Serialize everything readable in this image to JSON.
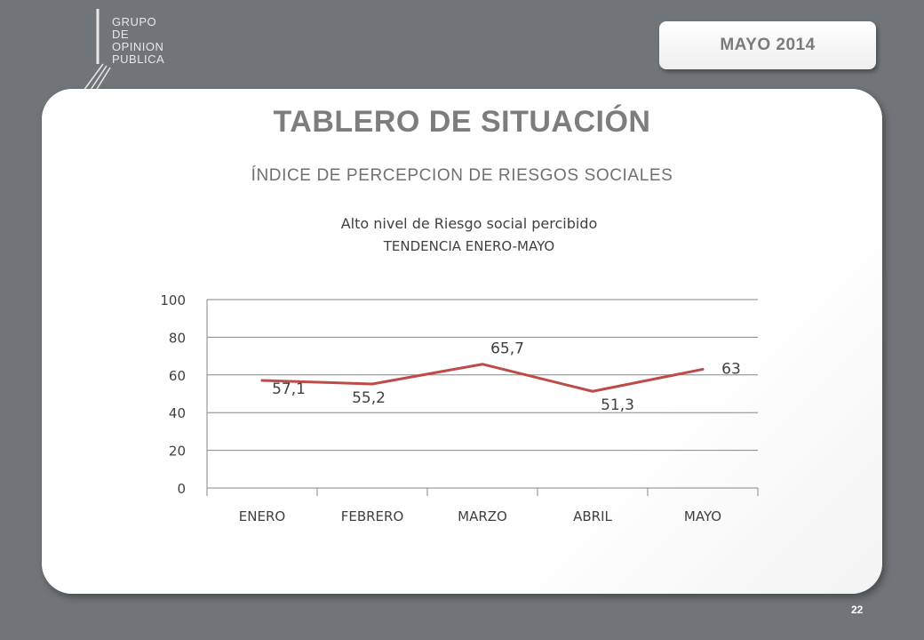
{
  "logo": {
    "lines": [
      "GRUPO",
      "DE",
      "OPINION",
      "PUBLICA"
    ]
  },
  "date_badge": "MAYO  2014",
  "title": "TABLERO DE SITUACIÓN",
  "subtitle": "ÍNDICE DE PERCEPCION DE RIESGOS SOCIALES",
  "page_number": "22",
  "colors": {
    "background": "#6f7578",
    "card": "#ffffff",
    "series": "#be4b48",
    "grid": "#868686"
  },
  "chart_data": {
    "type": "line",
    "title": "Alto nivel de Riesgo social percibido",
    "subtitle": "TENDENCIA ENERO-MAYO",
    "categories": [
      "ENERO",
      "FEBRERO",
      "MARZO",
      "ABRIL",
      "MAYO"
    ],
    "series": [
      {
        "values": [
          57.1,
          55.2,
          65.7,
          51.3,
          63
        ],
        "labels": [
          "57,1",
          "55,2",
          "65,7",
          "51,3",
          "63"
        ]
      }
    ],
    "ylim": [
      0,
      100
    ],
    "yticks": [
      0,
      20,
      40,
      60,
      80,
      100
    ],
    "grid": true,
    "legend": "none"
  }
}
